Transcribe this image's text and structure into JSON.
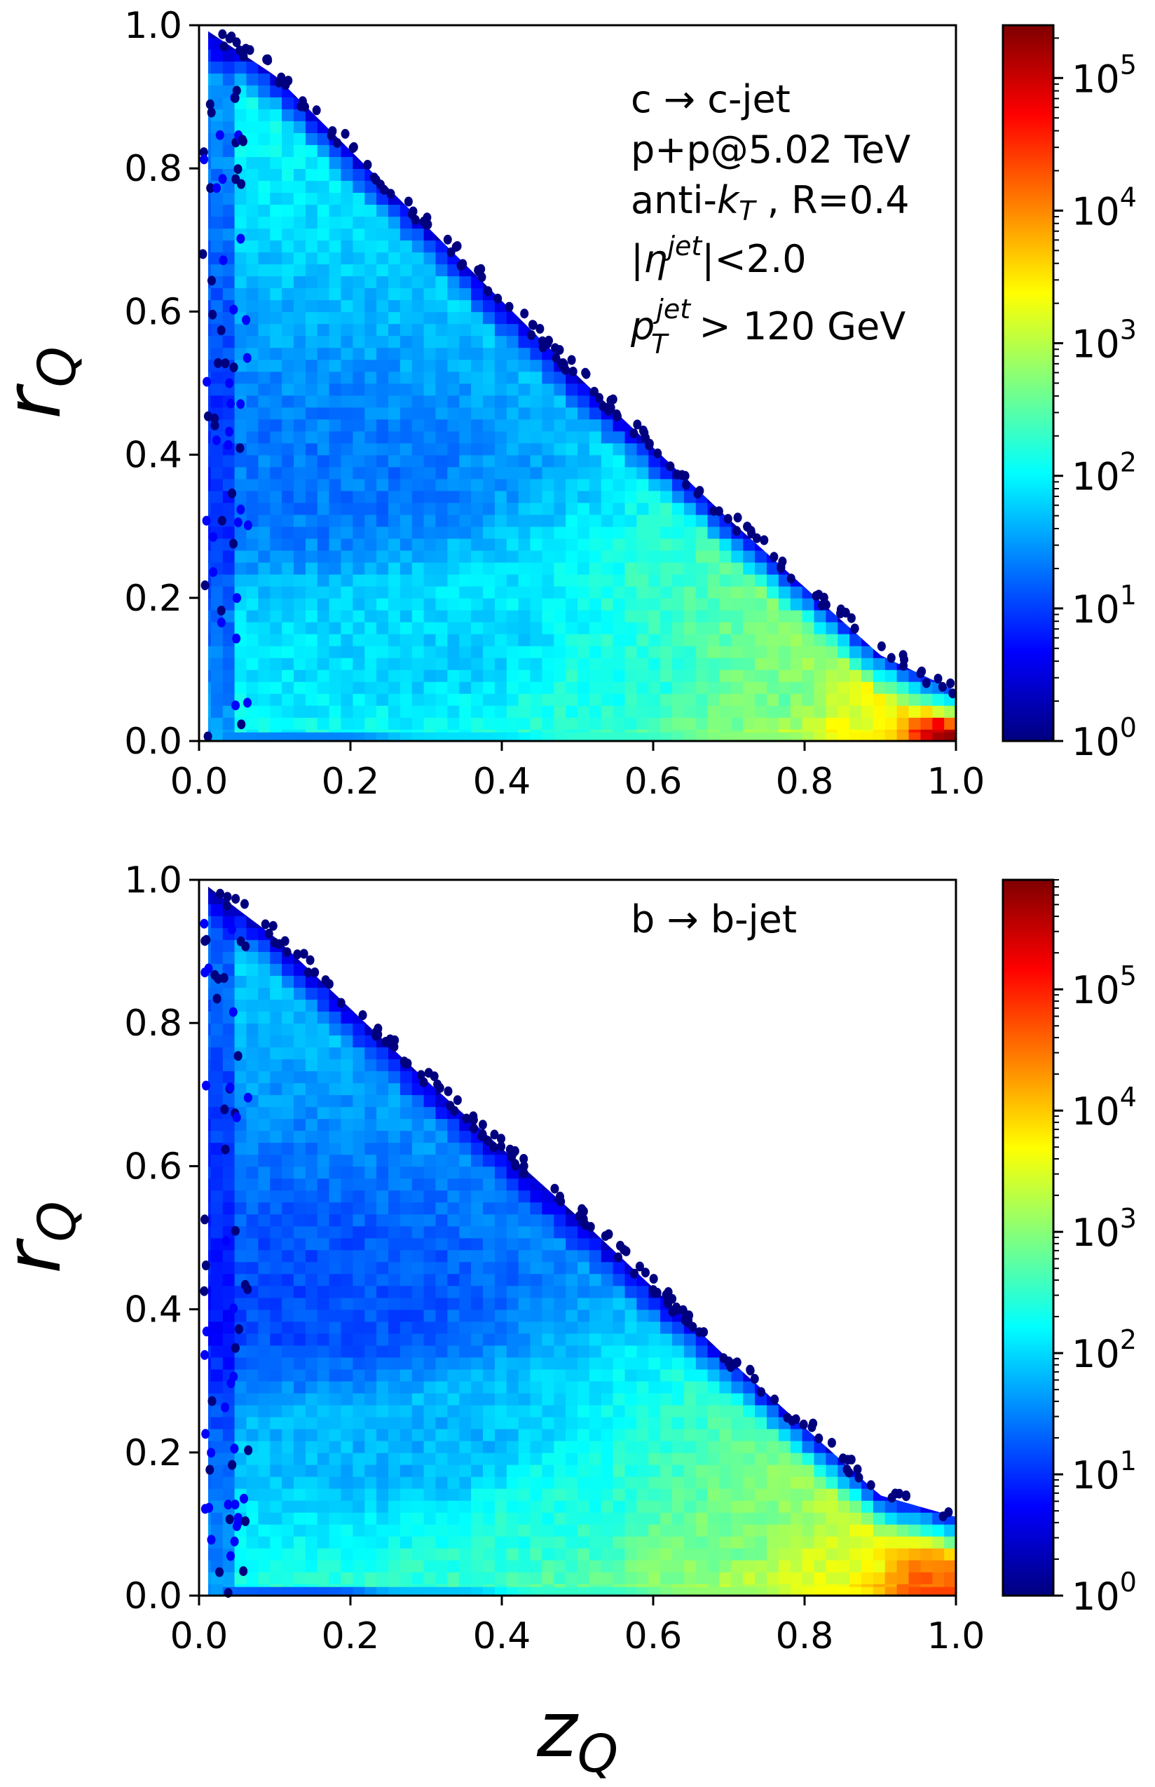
{
  "figure": {
    "xlabel_main": "z",
    "xlabel_sub": "Q",
    "ylabel_main": "r",
    "ylabel_sub": "Q"
  },
  "colormap": [
    "#00007f",
    "#0000ff",
    "#007fff",
    "#00ffff",
    "#7fff7f",
    "#ffff00",
    "#ff7f00",
    "#ff0000",
    "#7f0000"
  ],
  "chart_data": [
    {
      "type": "heatmap",
      "panel": "top",
      "xlabel": "zQ",
      "ylabel": "rQ",
      "xlim": [
        0.0,
        1.0
      ],
      "ylim": [
        0.0,
        1.0
      ],
      "xticks": [
        "0.0",
        "0.2",
        "0.4",
        "0.6",
        "0.8",
        "1.0"
      ],
      "yticks": [
        "0.0",
        "0.2",
        "0.4",
        "0.6",
        "0.8",
        "1.0"
      ],
      "colorbar": {
        "scale": "log",
        "range": [
          1,
          250000
        ],
        "ticks": [
          {
            "base": "10",
            "exp": "0",
            "value": 1
          },
          {
            "base": "10",
            "exp": "1",
            "value": 10
          },
          {
            "base": "10",
            "exp": "2",
            "value": 100
          },
          {
            "base": "10",
            "exp": "3",
            "value": 1000
          },
          {
            "base": "10",
            "exp": "4",
            "value": 10000
          },
          {
            "base": "10",
            "exp": "5",
            "value": 100000
          }
        ]
      },
      "annotations": {
        "process": "c → c-jet",
        "collision": "p+p@5.02 TeV",
        "algorithm_prefix": "anti-",
        "algorithm_k": "k",
        "algorithm_k_sub": "T",
        "algorithm_suffix": " , R=0.4",
        "eta_open": "|",
        "eta_symbol": "η",
        "eta_sup": "jet",
        "eta_close": "|<2.0",
        "pt_symbol": "p",
        "pt_sup": "jet",
        "pt_sub": "T",
        "pt_cut": " > 120 GeV"
      },
      "boundary": [
        [
          0.0,
          1.0
        ],
        [
          0.1,
          0.93
        ],
        [
          0.3,
          0.72
        ],
        [
          0.5,
          0.51
        ],
        [
          0.7,
          0.31
        ],
        [
          0.9,
          0.12
        ],
        [
          1.0,
          0.07
        ]
      ],
      "hotspots": [
        {
          "z": 0.99,
          "r": 0.01,
          "count": 150000
        },
        {
          "z": 0.9,
          "r": 0.03,
          "count": 1500
        },
        {
          "z": 0.75,
          "r": 0.06,
          "count": 400
        },
        {
          "z": 0.55,
          "r": 0.08,
          "count": 150
        },
        {
          "z": 0.35,
          "r": 0.12,
          "count": 60
        },
        {
          "z": 0.15,
          "r": 0.35,
          "count": 20
        }
      ]
    },
    {
      "type": "heatmap",
      "panel": "bottom",
      "xlabel": "zQ",
      "ylabel": "rQ",
      "xlim": [
        0.0,
        1.0
      ],
      "ylim": [
        0.0,
        1.0
      ],
      "xticks": [
        "0.0",
        "0.2",
        "0.4",
        "0.6",
        "0.8",
        "1.0"
      ],
      "yticks": [
        "0.0",
        "0.2",
        "0.4",
        "0.6",
        "0.8",
        "1.0"
      ],
      "colorbar": {
        "scale": "log",
        "range": [
          1,
          800000
        ],
        "ticks": [
          {
            "base": "10",
            "exp": "0",
            "value": 1
          },
          {
            "base": "10",
            "exp": "1",
            "value": 10
          },
          {
            "base": "10",
            "exp": "2",
            "value": 100
          },
          {
            "base": "10",
            "exp": "3",
            "value": 1000
          },
          {
            "base": "10",
            "exp": "4",
            "value": 10000
          },
          {
            "base": "10",
            "exp": "5",
            "value": 100000
          }
        ]
      },
      "annotations": {
        "process": "b → b-jet"
      },
      "boundary": [
        [
          0.0,
          1.0
        ],
        [
          0.1,
          0.92
        ],
        [
          0.3,
          0.72
        ],
        [
          0.5,
          0.53
        ],
        [
          0.7,
          0.33
        ],
        [
          0.9,
          0.14
        ],
        [
          1.0,
          0.11
        ]
      ],
      "hotspots": [
        {
          "z": 0.97,
          "r": 0.02,
          "count": 40000
        },
        {
          "z": 0.85,
          "r": 0.04,
          "count": 3000
        },
        {
          "z": 0.7,
          "r": 0.08,
          "count": 800
        },
        {
          "z": 0.5,
          "r": 0.12,
          "count": 250
        },
        {
          "z": 0.3,
          "r": 0.2,
          "count": 60
        },
        {
          "z": 0.15,
          "r": 0.4,
          "count": 15
        }
      ]
    }
  ]
}
